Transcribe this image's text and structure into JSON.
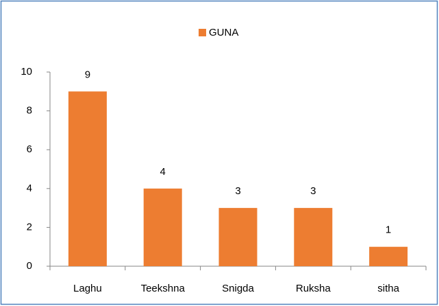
{
  "chart_data": {
    "type": "bar",
    "legend_position": "top",
    "series": [
      {
        "name": "GUNA",
        "color": "#ed7d31",
        "values": [
          9,
          4,
          3,
          3,
          1
        ]
      }
    ],
    "categories": [
      "Laghu",
      "Teekshna",
      "Snigda",
      "Ruksha",
      "sitha"
    ],
    "ylim": [
      0,
      10
    ],
    "yticks": [
      0,
      2,
      4,
      6,
      8,
      10
    ],
    "grid": false
  }
}
